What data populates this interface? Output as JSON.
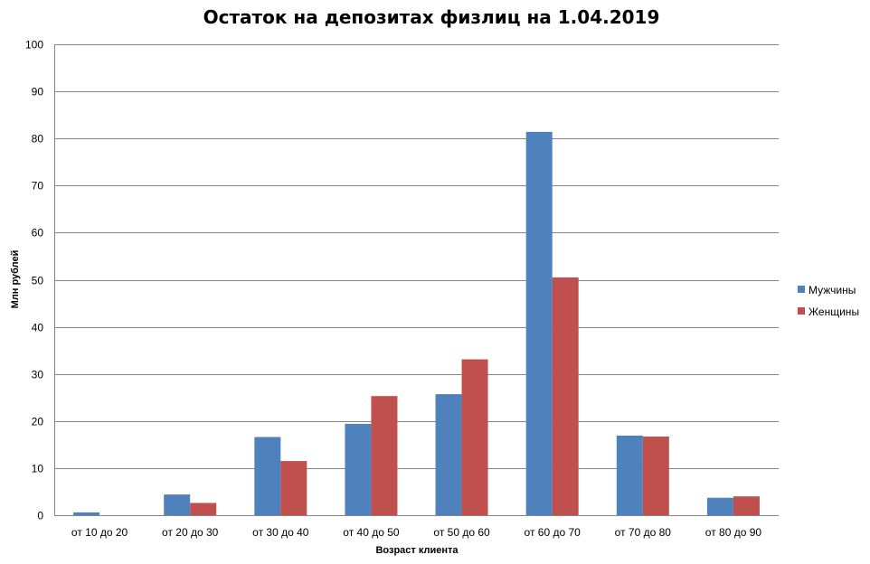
{
  "chart_data": {
    "type": "bar",
    "title": "Остаток на депозитах физлиц на 1.04.2019",
    "xlabel": "Возраст клиента",
    "ylabel": "Млн рублей",
    "ylim": [
      0,
      100
    ],
    "yticks": [
      0,
      10,
      20,
      30,
      40,
      50,
      60,
      70,
      80,
      90,
      100
    ],
    "grid": true,
    "legend_position": "right",
    "categories": [
      "от 10 до 20",
      "от 20 до 30",
      "от 30 до 40",
      "от 40 до 50",
      "от 50 до 60",
      "от 60 до 70",
      "от 70 до 80",
      "от 80 до 90"
    ],
    "series": [
      {
        "name": "Мужчины",
        "color": "#4f81bd",
        "values": [
          0.6,
          4.4,
          16.6,
          19.4,
          25.7,
          81.4,
          16.9,
          3.7
        ]
      },
      {
        "name": "Женщины",
        "color": "#c0504d",
        "values": [
          0,
          2.6,
          11.5,
          25.3,
          33.1,
          50.5,
          16.7,
          4.0
        ]
      }
    ]
  }
}
